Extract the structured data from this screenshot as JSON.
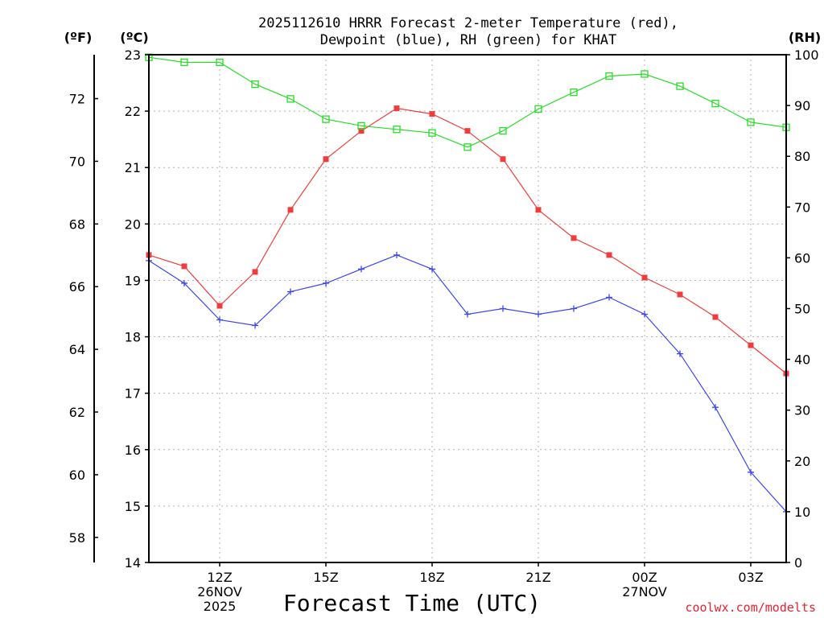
{
  "chart_data": {
    "type": "line",
    "title_line1": "2025112610 HRRR Forecast 2-meter Temperature (red),",
    "title_line2": "Dewpoint (blue), RH (green) for KHAT",
    "units": {
      "fahrenheit": "(ºF)",
      "celsius": "(ºC)",
      "rh": "(RH)"
    },
    "xlabel": "Forecast Time (UTC)",
    "source": "coolwx.com/modelts",
    "hours": [
      10,
      11,
      12,
      13,
      14,
      15,
      16,
      17,
      18,
      19,
      20,
      21,
      22,
      23,
      24,
      25,
      26,
      27,
      28
    ],
    "x_ticks": [
      {
        "hour": 12,
        "label": "12Z",
        "date": "26NOV",
        "year": "2025"
      },
      {
        "hour": 15,
        "label": "15Z",
        "date": "",
        "year": ""
      },
      {
        "hour": 18,
        "label": "18Z",
        "date": "",
        "year": ""
      },
      {
        "hour": 21,
        "label": "21Z",
        "date": "",
        "year": ""
      },
      {
        "hour": 24,
        "label": "00Z",
        "date": "27NOV",
        "year": ""
      },
      {
        "hour": 27,
        "label": "03Z",
        "date": "",
        "year": ""
      }
    ],
    "x_range": [
      10,
      28
    ],
    "c_range": [
      14,
      23
    ],
    "c_ticks": [
      "14",
      "15",
      "16",
      "17",
      "18",
      "19",
      "20",
      "21",
      "22",
      "23"
    ],
    "f_ticks": [
      "58",
      "60",
      "62",
      "64",
      "66",
      "68",
      "70",
      "72"
    ],
    "rh_range": [
      0,
      100
    ],
    "rh_ticks": [
      "0",
      "10",
      "20",
      "30",
      "40",
      "50",
      "60",
      "70",
      "80",
      "90",
      "100"
    ],
    "colors": {
      "temperature": "#f03c3c",
      "dewpoint": "#3c46f0",
      "rh": "#28dc28",
      "grid": "#b4b4b4"
    },
    "series": [
      {
        "name": "Temperature",
        "unit": "C",
        "marker": "filled-square",
        "values": [
          19.45,
          19.25,
          18.55,
          19.15,
          20.25,
          21.15,
          21.65,
          22.05,
          21.95,
          21.65,
          21.15,
          20.25,
          19.75,
          19.45,
          19.05,
          18.75,
          18.35,
          17.85,
          17.35
        ]
      },
      {
        "name": "Dewpoint",
        "unit": "C",
        "marker": "plus",
        "values": [
          19.35,
          18.95,
          18.3,
          18.2,
          18.8,
          18.95,
          19.2,
          19.45,
          19.2,
          18.4,
          18.5,
          18.4,
          18.5,
          18.7,
          18.4,
          17.7,
          16.75,
          15.6,
          14.9
        ]
      },
      {
        "name": "RH",
        "unit": "%",
        "marker": "open-square",
        "values": [
          99.5,
          98.5,
          98.5,
          94.2,
          91.3,
          87.3,
          86,
          85.3,
          84.6,
          81.8,
          85,
          89.3,
          92.6,
          95.8,
          96.2,
          93.8,
          90.4,
          86.7,
          85.7
        ]
      }
    ]
  }
}
